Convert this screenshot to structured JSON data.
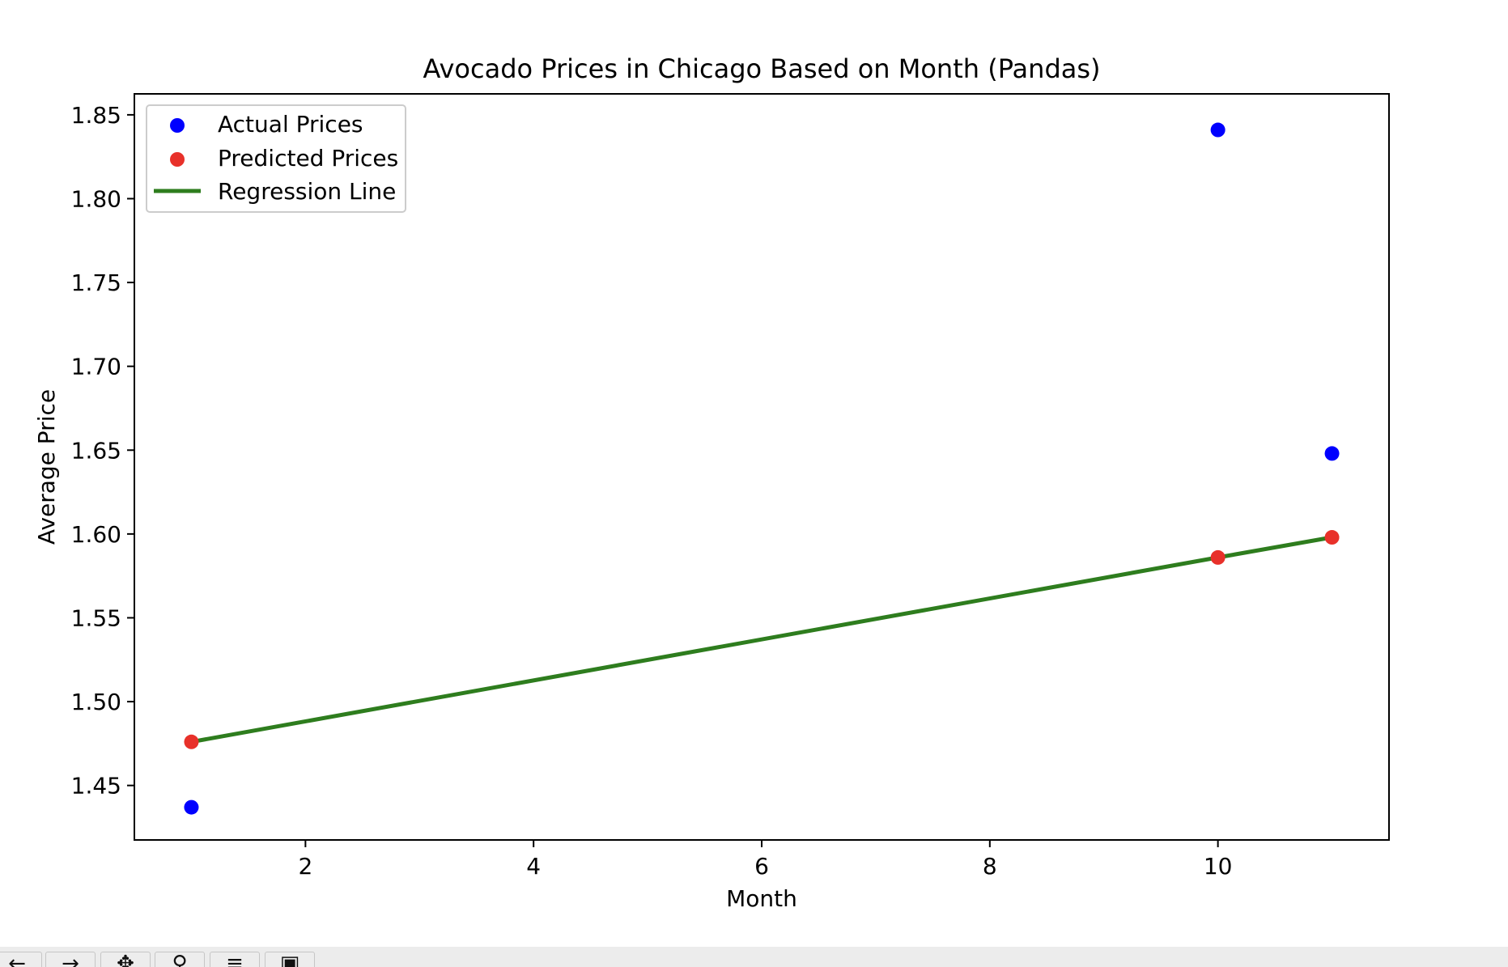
{
  "chart_data": {
    "type": "scatter",
    "title": "Avocado Prices in Chicago Based on Month (Pandas)",
    "xlabel": "Month",
    "ylabel": "Average Price",
    "xlim": [
      0.5,
      11.5
    ],
    "ylim": [
      1.4175,
      1.8625
    ],
    "xticks": [
      2,
      4,
      6,
      8,
      10
    ],
    "xtick_labels": [
      "2",
      "4",
      "6",
      "8",
      "10"
    ],
    "yticks": [
      1.45,
      1.5,
      1.55,
      1.6,
      1.65,
      1.7,
      1.75,
      1.8,
      1.85
    ],
    "ytick_labels": [
      "1.45",
      "1.50",
      "1.55",
      "1.60",
      "1.65",
      "1.70",
      "1.75",
      "1.80",
      "1.85"
    ],
    "grid": false,
    "legend_position": "top-left",
    "series": [
      {
        "name": "Actual Prices",
        "kind": "scatter",
        "color": "#0000ff",
        "x": [
          1,
          10,
          11
        ],
        "y": [
          1.437,
          1.841,
          1.648
        ]
      },
      {
        "name": "Predicted Prices",
        "kind": "scatter",
        "color": "#e8312a",
        "x": [
          1,
          10,
          11
        ],
        "y": [
          1.476,
          1.586,
          1.598
        ]
      },
      {
        "name": "Regression Line",
        "kind": "line",
        "color": "#2e7d1e",
        "x": [
          1,
          10,
          11
        ],
        "y": [
          1.476,
          1.586,
          1.598
        ]
      }
    ]
  },
  "toolbar": {
    "buttons": [
      {
        "name": "back-button",
        "icon": "arrow-left-icon",
        "glyph": "←"
      },
      {
        "name": "forward-button",
        "icon": "arrow-right-icon",
        "glyph": "→"
      },
      {
        "name": "pan-button",
        "icon": "move-icon",
        "glyph": "✥"
      },
      {
        "name": "zoom-button",
        "icon": "magnifier-icon",
        "glyph": "⚲"
      },
      {
        "name": "configure-button",
        "icon": "sliders-icon",
        "glyph": "≡"
      },
      {
        "name": "save-button",
        "icon": "save-icon",
        "glyph": "▣"
      }
    ]
  }
}
